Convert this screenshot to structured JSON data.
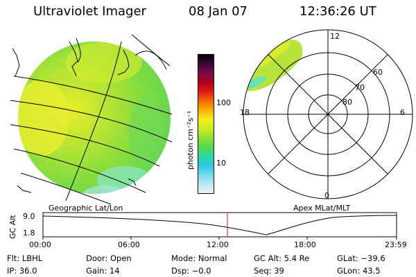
{
  "header": {
    "title": "Ultraviolet Imager",
    "date": "08 Jan 07",
    "time": "12:36:26 UT"
  },
  "colorbar": {
    "unit_label": "photon cm⁻²s⁻¹",
    "ticks": [
      "100",
      "10"
    ],
    "colors": [
      "#000000",
      "#3a0a3a",
      "#7a0a4a",
      "#b0001a",
      "#e01a1a",
      "#f46a00",
      "#f9b000",
      "#f1ee18",
      "#c9ee20",
      "#8fe030",
      "#52d84a",
      "#2ad7a0",
      "#29c9e0",
      "#76d9f0",
      "#b9e8f2",
      "#e6f4f6"
    ]
  },
  "geo_panel": {
    "label": "Geographic Lat/Lon"
  },
  "polar_panel": {
    "label": "Apex MLat/MLT",
    "mlt_labels": {
      "top": "12",
      "bottom": "0",
      "left": "18",
      "right": "6"
    },
    "mlat_labels": [
      "60",
      "70",
      "80"
    ]
  },
  "altitude_plot": {
    "ylabel": "GC Alt",
    "yticks": [
      "9.0",
      "1.8"
    ],
    "xticks": [
      "00:00",
      "06:00",
      "12:00",
      "18:00",
      "23:59"
    ],
    "current_marker_color": "#b02020"
  },
  "info": {
    "filter": "Flt: LBHL",
    "door": "Door: Open",
    "mode": "Mode: Normal",
    "gc_alt": "GC Alt: 5.4 Re",
    "glat": "GLat: −39.6",
    "ip": "IP: 36.0",
    "gain": "Gain: 14",
    "dsp": "Dsp:   −0.0",
    "seq": "Seq: 39",
    "glon": "GLon:  43.5"
  }
}
